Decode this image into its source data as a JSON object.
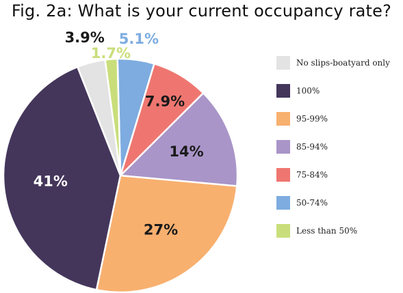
{
  "chart_data": {
    "type": "pie",
    "title": "Fig. 2a: What is your current occupancy rate?",
    "slices": [
      {
        "label": "100%",
        "value": 41,
        "display": "41%",
        "color": "#44365b",
        "label_color": "#ffffff"
      },
      {
        "label": "95-99%",
        "value": 27,
        "display": "27%",
        "color": "#f8b06f",
        "label_color": "#1a1a1a"
      },
      {
        "label": "85-94%",
        "value": 14,
        "display": "14%",
        "color": "#a995c8",
        "label_color": "#1a1a1a"
      },
      {
        "label": "75-84%",
        "value": 7.9,
        "display": "7.9%",
        "color": "#ef7670",
        "label_color": "#1a1a1a"
      },
      {
        "label": "50-74%",
        "value": 5.1,
        "display": "5.1%",
        "color": "#7eace0",
        "label_color": "#7eace0"
      },
      {
        "label": "Less than 50%",
        "value": 1.7,
        "display": "1.7%",
        "color": "#c9de7b",
        "label_color": "#c9de7b"
      },
      {
        "label": "No slips-boatyard only",
        "value": 3.9,
        "display": "3.9%",
        "color": "#e3e3e3",
        "label_color": "#1a1a1a"
      }
    ],
    "legend": [
      "No slips-boatyard only",
      "100%",
      "95-99%",
      "85-94%",
      "75-84%",
      "50-74%",
      "Less than 50%"
    ],
    "legend_position": "right"
  }
}
